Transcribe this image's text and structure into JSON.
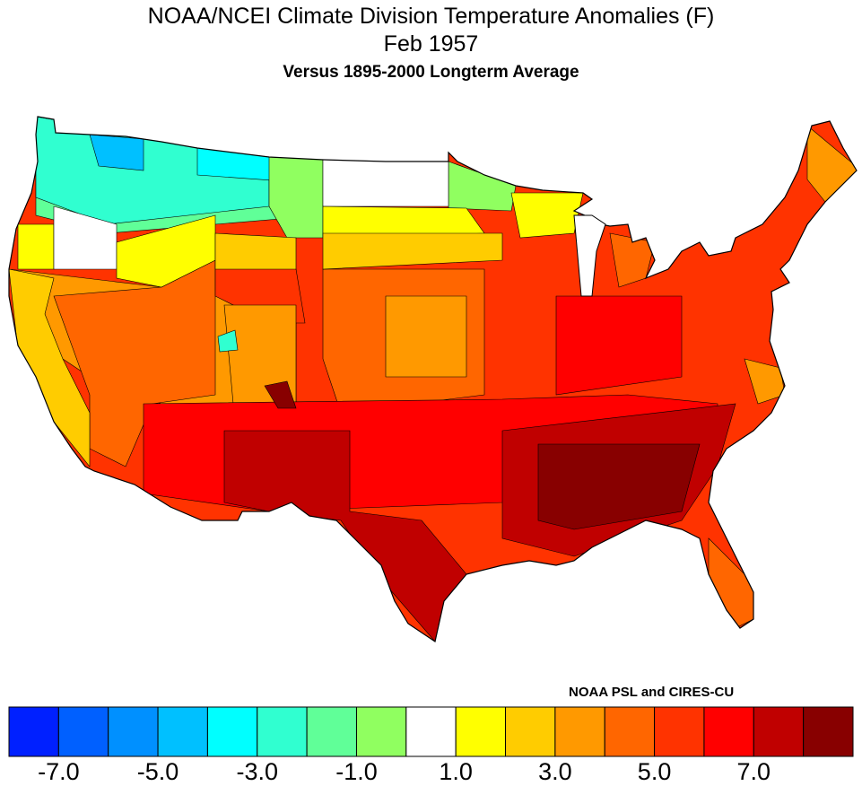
{
  "title": "NOAA/NCEI Climate Division Temperature Anomalies (F)",
  "date": "Feb 1957",
  "subtitle": "Versus 1895-2000 Longterm Average",
  "credit": "NOAA PSL and CIRES-CU",
  "colorbar": {
    "colors": [
      "#0020ff",
      "#0060ff",
      "#0090ff",
      "#00c0ff",
      "#00ffff",
      "#30ffd0",
      "#60ff98",
      "#90ff60",
      "#ffffff",
      "#ffff00",
      "#ffcc00",
      "#ff9900",
      "#ff6600",
      "#ff3300",
      "#ff0000",
      "#c00000",
      "#880000"
    ],
    "labels": [
      "-7.0",
      "-5.0",
      "-3.0",
      "-1.0",
      "1.0",
      "3.0",
      "5.0",
      "7.0"
    ]
  },
  "chart_data": {
    "type": "heatmap",
    "title": "NOAA/NCEI Climate Division Temperature Anomalies (F) Feb 1957",
    "units": "F",
    "legend_placement": "bottom",
    "summary_by_region": {
      "Pacific Northwest / northern Rockies": "-1 to -5",
      "North Dakota": "-1 to 1",
      "California / Great Basin": "1 to 4",
      "Central Plains": "3 to 6",
      "Midwest / Northeast": "5 to 6",
      "Texas / New Mexico": "6 to 8",
      "Deep South (MS/AL/GA)": "above 8"
    }
  }
}
